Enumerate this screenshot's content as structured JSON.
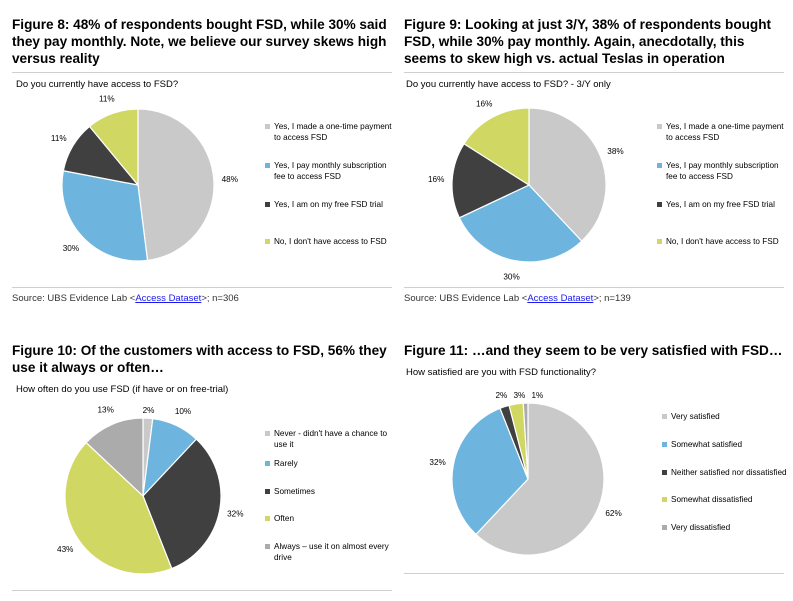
{
  "colors": {
    "light_gray": "#c9c9c9",
    "blue": "#6db5df",
    "dark": "#404040",
    "yellow": "#d1d763",
    "mid_gray": "#ababab"
  },
  "chart_data": [
    {
      "type": "pie",
      "title": "Figure 8: 48% of respondents bought FSD, while 30% said they pay monthly. Note, we believe our survey skews high versus reality",
      "subtitle": "Do you currently have access to FSD?",
      "categories": [
        "Yes, I made a one-time payment to access FSD",
        "Yes, I pay monthly subscription fee to access FSD",
        "Yes, I am on my free FSD trial",
        "No, I don't have access to FSD"
      ],
      "values": [
        48,
        30,
        11,
        11
      ],
      "labels": [
        "48%",
        "30%",
        "11%",
        "11%"
      ],
      "colors": [
        "#c9c9c9",
        "#6db5df",
        "#404040",
        "#d1d763"
      ],
      "legend": "right",
      "source": {
        "prefix": "Source: UBS Evidence Lab <",
        "link": "Access Dataset",
        "suffix": ">; n=306"
      }
    },
    {
      "type": "pie",
      "title": "Figure 9: Looking at just 3/Y, 38% of respondents bought FSD, while 30% pay monthly. Again, anecdotally, this seems to skew high vs. actual Teslas in operation",
      "subtitle": "Do you currently have access to FSD? - 3/Y only",
      "categories": [
        "Yes, I made a one-time payment to access FSD",
        "Yes, I pay monthly subscription fee to access FSD",
        "Yes, I am on my free FSD trial",
        "No, I don't have access to FSD"
      ],
      "values": [
        38,
        30,
        16,
        16
      ],
      "labels": [
        "38%",
        "30%",
        "16%",
        "16%"
      ],
      "colors": [
        "#c9c9c9",
        "#6db5df",
        "#404040",
        "#d1d763"
      ],
      "legend": "right",
      "source": {
        "prefix": "Source: UBS Evidence Lab <",
        "link": "Access Dataset",
        "suffix": ">; n=139"
      }
    },
    {
      "type": "pie",
      "title": "Figure 10: Of the customers with access to FSD, 56% they use it always or often…",
      "subtitle": "How often do you use FSD (if have or on free-trial)",
      "categories": [
        "Never - didn't have a chance to use it",
        "Rarely",
        "Sometimes",
        "Often",
        "Always – use it on almost every drive"
      ],
      "values": [
        2,
        10,
        32,
        43,
        13
      ],
      "labels": [
        "2%",
        "10%",
        "32%",
        "43%",
        "13%"
      ],
      "colors": [
        "#c9c9c9",
        "#6db5df",
        "#404040",
        "#d1d763",
        "#ababab"
      ],
      "legend": "right"
    },
    {
      "type": "pie",
      "title": "Figure 11: …and they seem to be very satisfied with FSD…",
      "subtitle": "How satisfied are you with FSD functionality?",
      "categories": [
        "Very satisfied",
        "Somewhat satisfied",
        "Neither satisfied nor dissatisfied",
        "Somewhat dissatisfied",
        "Very dissatisfied"
      ],
      "values": [
        62,
        32,
        2,
        3,
        1
      ],
      "labels": [
        "62%",
        "32%",
        "2%",
        "3%",
        "1%"
      ],
      "colors": [
        "#c9c9c9",
        "#6db5df",
        "#404040",
        "#d1d763",
        "#ababab"
      ],
      "legend": "right"
    }
  ]
}
